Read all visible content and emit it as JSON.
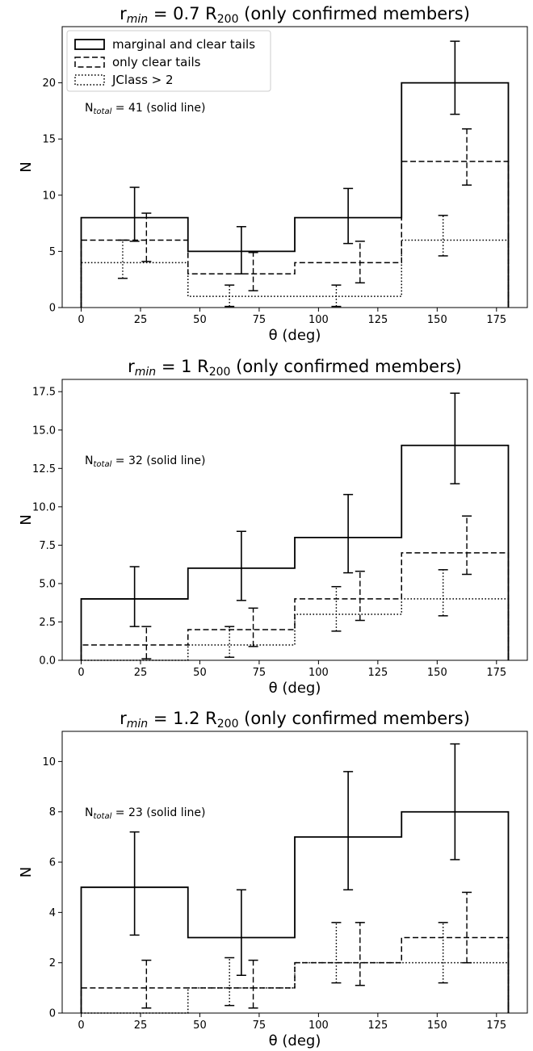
{
  "legend": {
    "entries": [
      {
        "label": "marginal and clear tails",
        "style": "solid"
      },
      {
        "label": "only clear tails",
        "style": "dashed"
      },
      {
        "label": "JClass > 2",
        "style": "dotted"
      }
    ],
    "placement": "upper-left (top panel only)"
  },
  "chart_data": [
    {
      "type": "histogram",
      "title": {
        "prefix": "r",
        "sub": "min",
        "mid": " = 0.7 R",
        "sub2": "200",
        "suffix": " (only confirmed members)"
      },
      "xlabel": "θ (deg)",
      "ylabel": "N",
      "xlim": [
        -8,
        188
      ],
      "ylim": [
        0,
        25
      ],
      "xticks": [
        0,
        25,
        50,
        75,
        100,
        125,
        150,
        175
      ],
      "yticks": [
        0,
        5,
        10,
        15,
        20
      ],
      "ytick_labels": [
        "0",
        "5",
        "10",
        "15",
        "20"
      ],
      "annotation": {
        "prefix": "N",
        "sub": "total",
        "suffix": " = 41 (solid line)"
      },
      "bin_edges": [
        0,
        45,
        90,
        135,
        180
      ],
      "series": [
        {
          "name": "marginal and clear tails",
          "style": "solid",
          "values": [
            8,
            5,
            8,
            20
          ],
          "err_x": [
            22.5,
            67.5,
            112.5,
            157.5
          ],
          "err_lo": [
            5.9,
            3.0,
            5.7,
            17.2
          ],
          "err_hi": [
            10.7,
            7.2,
            10.6,
            23.7
          ]
        },
        {
          "name": "only clear tails",
          "style": "dashed",
          "values": [
            6,
            3,
            4,
            13
          ],
          "err_x": [
            27.5,
            72.5,
            117.5,
            162.5
          ],
          "err_lo": [
            4.1,
            1.5,
            2.2,
            10.9
          ],
          "err_hi": [
            8.4,
            4.9,
            5.9,
            15.9
          ]
        },
        {
          "name": "JClass > 2",
          "style": "dotted",
          "values": [
            4,
            1,
            1,
            6
          ],
          "err_x": [
            17.5,
            62.5,
            107.5,
            152.5
          ],
          "err_lo": [
            2.6,
            0.1,
            0.1,
            4.6
          ],
          "err_hi": [
            6.0,
            2.0,
            2.0,
            8.2
          ]
        }
      ]
    },
    {
      "type": "histogram",
      "title": {
        "prefix": "r",
        "sub": "min",
        "mid": " = 1 R",
        "sub2": "200",
        "suffix": " (only confirmed members)"
      },
      "xlabel": "θ (deg)",
      "ylabel": "N",
      "xlim": [
        -8,
        188
      ],
      "ylim": [
        0,
        18.3
      ],
      "xticks": [
        0,
        25,
        50,
        75,
        100,
        125,
        150,
        175
      ],
      "yticks": [
        0,
        2.5,
        5,
        7.5,
        10,
        12.5,
        15,
        17.5
      ],
      "ytick_labels": [
        "0.0",
        "2.5",
        "5.0",
        "7.5",
        "10.0",
        "12.5",
        "15.0",
        "17.5"
      ],
      "annotation": {
        "prefix": "N",
        "sub": "total",
        "suffix": " = 32 (solid line)"
      },
      "bin_edges": [
        0,
        45,
        90,
        135,
        180
      ],
      "series": [
        {
          "name": "marginal and clear tails",
          "style": "solid",
          "values": [
            4,
            6,
            8,
            14
          ],
          "err_x": [
            22.5,
            67.5,
            112.5,
            157.5
          ],
          "err_lo": [
            2.2,
            3.9,
            5.7,
            11.5
          ],
          "err_hi": [
            6.1,
            8.4,
            10.8,
            17.4
          ]
        },
        {
          "name": "only clear tails",
          "style": "dashed",
          "values": [
            1,
            2,
            4,
            7
          ],
          "err_x": [
            27.5,
            72.5,
            117.5,
            162.5
          ],
          "err_lo": [
            0.1,
            0.9,
            2.6,
            5.6
          ],
          "err_hi": [
            2.2,
            3.4,
            5.8,
            9.4
          ]
        },
        {
          "name": "JClass > 2",
          "style": "dotted",
          "values": [
            0,
            1,
            3,
            4
          ],
          "err_x": [
            17.5,
            62.5,
            107.5,
            152.5
          ],
          "err_lo": [
            0.0,
            0.2,
            1.9,
            2.9
          ],
          "err_hi": [
            0.0,
            2.2,
            4.8,
            5.9
          ]
        }
      ]
    },
    {
      "type": "histogram",
      "title": {
        "prefix": "r",
        "sub": "min",
        "mid": " = 1.2 R",
        "sub2": "200",
        "suffix": " (only confirmed members)"
      },
      "xlabel": "θ (deg)",
      "ylabel": "N",
      "xlim": [
        -8,
        188
      ],
      "ylim": [
        0,
        11.2
      ],
      "xticks": [
        0,
        25,
        50,
        75,
        100,
        125,
        150,
        175
      ],
      "yticks": [
        0,
        2,
        4,
        6,
        8,
        10
      ],
      "ytick_labels": [
        "0",
        "2",
        "4",
        "6",
        "8",
        "10"
      ],
      "annotation": {
        "prefix": "N",
        "sub": "total",
        "suffix": " = 23 (solid line)"
      },
      "bin_edges": [
        0,
        45,
        90,
        135,
        180
      ],
      "series": [
        {
          "name": "marginal and clear tails",
          "style": "solid",
          "values": [
            5,
            3,
            7,
            8
          ],
          "err_x": [
            22.5,
            67.5,
            112.5,
            157.5
          ],
          "err_lo": [
            3.1,
            1.5,
            4.9,
            6.1
          ],
          "err_hi": [
            7.2,
            4.9,
            9.6,
            10.7
          ]
        },
        {
          "name": "only clear tails",
          "style": "dashed",
          "values": [
            1,
            1,
            2,
            3
          ],
          "err_x": [
            27.5,
            72.5,
            117.5,
            162.5
          ],
          "err_lo": [
            0.2,
            0.2,
            1.1,
            2.0
          ],
          "err_hi": [
            2.1,
            2.1,
            3.6,
            4.8
          ]
        },
        {
          "name": "JClass > 2",
          "style": "dotted",
          "values": [
            0,
            1,
            2,
            2
          ],
          "err_x": [
            17.5,
            62.5,
            107.5,
            152.5
          ],
          "err_lo": [
            0.0,
            0.3,
            1.2,
            1.2
          ],
          "err_hi": [
            0.0,
            2.2,
            3.6,
            3.6
          ]
        }
      ]
    }
  ]
}
